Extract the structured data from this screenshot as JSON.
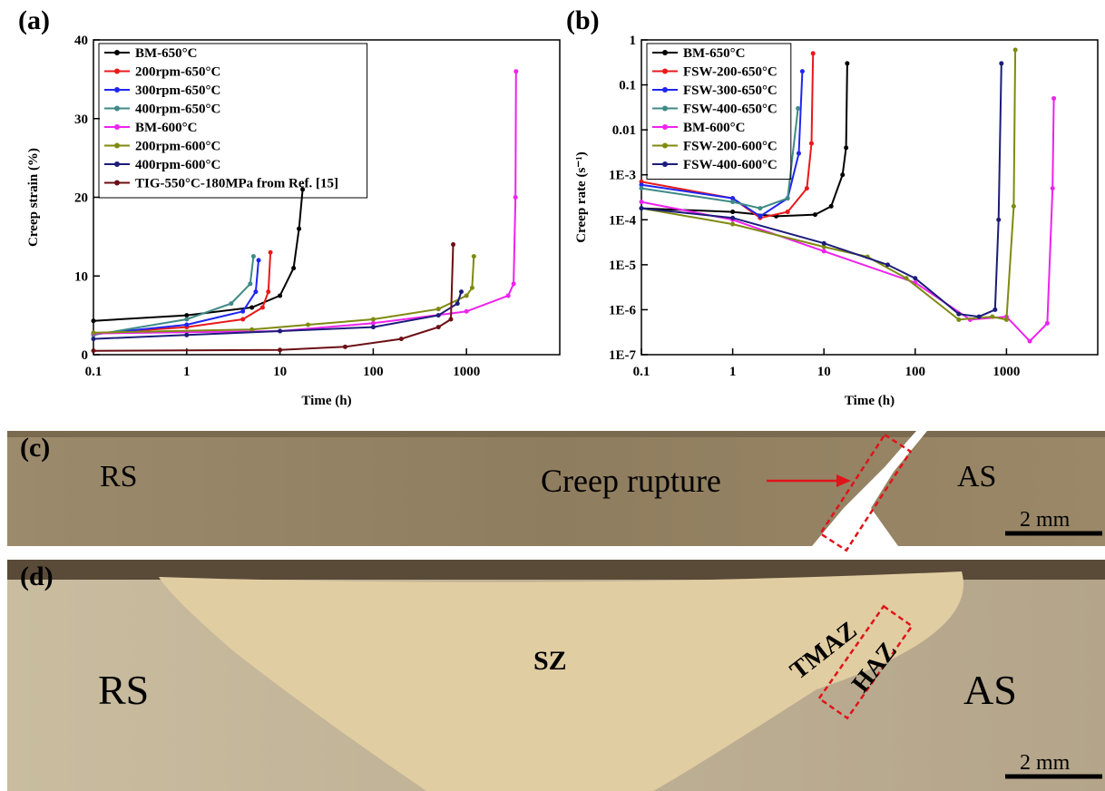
{
  "chart_data": [
    {
      "type": "line",
      "panel_label": "(a)",
      "x_label": "Time (h)",
      "y_label": "Creep strain (%)",
      "xscale": "log",
      "xlim": [
        0.1,
        10000
      ],
      "xticks": [
        0.1,
        1,
        10,
        100,
        1000
      ],
      "ylim": [
        0,
        40
      ],
      "yticks": [
        0,
        10,
        20,
        30,
        40
      ],
      "legend": "upper left",
      "series": [
        {
          "name": "BM-650°C",
          "color": "#000000",
          "x": [
            0.1,
            1,
            5,
            10,
            14,
            16,
            17.5
          ],
          "values": [
            4.3,
            5,
            6,
            7.5,
            11,
            16,
            21
          ]
        },
        {
          "name": "200rpm-650°C",
          "color": "#e8191b",
          "x": [
            0.1,
            1,
            4,
            6.5,
            7.5,
            7.9
          ],
          "values": [
            2.7,
            3.5,
            4.5,
            6,
            8,
            13
          ]
        },
        {
          "name": "300rpm-650°C",
          "color": "#1f26f0",
          "x": [
            0.1,
            1,
            4,
            5.5,
            5.9
          ],
          "values": [
            2.6,
            3.8,
            5.5,
            8,
            12
          ]
        },
        {
          "name": "400rpm-650°C",
          "color": "#3f8a86",
          "x": [
            0.1,
            1,
            3,
            4.8,
            5.2
          ],
          "values": [
            2.5,
            4.5,
            6.5,
            9,
            12.5
          ]
        },
        {
          "name": "BM-600°C",
          "color": "#ee22ee",
          "x": [
            0.1,
            10,
            100,
            1000,
            2800,
            3200,
            3350,
            3400
          ],
          "values": [
            2.7,
            3,
            4,
            5.5,
            7.5,
            9,
            20,
            36
          ]
        },
        {
          "name": "200rpm-600°C",
          "color": "#7f8a10",
          "x": [
            0.1,
            5,
            20,
            100,
            500,
            1000,
            1150,
            1200
          ],
          "values": [
            2.8,
            3.2,
            3.8,
            4.5,
            5.8,
            7.5,
            8.5,
            12.5
          ]
        },
        {
          "name": "400rpm-600°C",
          "color": "#1c1c7a",
          "x": [
            0.1,
            1,
            10,
            100,
            500,
            800,
            880
          ],
          "values": [
            2,
            2.5,
            3,
            3.5,
            5,
            6.5,
            8
          ]
        },
        {
          "name": "TIG-550°C-180MPa from Ref. [15]",
          "color": "#6b0f14",
          "x": [
            0.1,
            10,
            50,
            200,
            500,
            680,
            720
          ],
          "values": [
            0.5,
            0.6,
            1,
            2,
            3.5,
            4.5,
            14
          ]
        }
      ]
    },
    {
      "type": "line",
      "panel_label": "(b)",
      "x_label": "Time (h)",
      "y_label": "Creep rate (s⁻¹)",
      "xscale": "log",
      "xlim": [
        0.1,
        10000
      ],
      "xticks": [
        0.1,
        1,
        10,
        100,
        1000
      ],
      "yscale": "log",
      "ylim": [
        1e-07,
        1
      ],
      "yticks": [
        {
          "value": 1e-07,
          "label": "1E-7"
        },
        {
          "value": 1e-06,
          "label": "1E-6"
        },
        {
          "value": 1e-05,
          "label": "1E-5"
        },
        {
          "value": 0.0001,
          "label": "1E-4"
        },
        {
          "value": 0.001,
          "label": "1E-3"
        },
        0.01,
        0.1,
        1
      ],
      "legend": "upper left",
      "series": [
        {
          "name": "BM-650°C",
          "color": "#000000",
          "x": [
            0.1,
            1,
            3,
            8,
            12,
            16,
            17.5,
            18
          ],
          "values": [
            0.00018,
            0.00015,
            0.00012,
            0.00013,
            0.0002,
            0.001,
            0.004,
            0.3
          ]
        },
        {
          "name": "FSW-200-650°C",
          "color": "#e8191b",
          "x": [
            0.1,
            1,
            2,
            4,
            6.5,
            7.3,
            7.6
          ],
          "values": [
            0.0007,
            0.0003,
            0.00011,
            0.00015,
            0.0005,
            0.005,
            0.5
          ]
        },
        {
          "name": "FSW-300-650°C",
          "color": "#1f26f0",
          "x": [
            0.1,
            1,
            2,
            4,
            5.3,
            5.8
          ],
          "values": [
            0.0006,
            0.0003,
            0.00012,
            0.0003,
            0.003,
            0.2
          ]
        },
        {
          "name": "FSW-400-650°C",
          "color": "#3f8a86",
          "x": [
            0.1,
            1,
            2,
            4,
            5.2
          ],
          "values": [
            0.0005,
            0.00025,
            0.00018,
            0.0003,
            0.03
          ]
        },
        {
          "name": "BM-600°C",
          "color": "#ee22ee",
          "x": [
            0.1,
            1,
            10,
            100,
            400,
            1000,
            1800,
            2800,
            3200,
            3300
          ],
          "values": [
            0.00025,
            0.0001,
            2e-05,
            4e-06,
            6e-07,
            7e-07,
            2e-07,
            5e-07,
            0.0005,
            0.05
          ]
        },
        {
          "name": "FSW-200-600°C",
          "color": "#7f8a10",
          "x": [
            0.1,
            1,
            10,
            30,
            80,
            300,
            700,
            1000,
            1200,
            1250
          ],
          "values": [
            0.00018,
            8e-05,
            2.5e-05,
            1.5e-05,
            5e-06,
            6e-07,
            7e-07,
            6e-07,
            0.0002,
            0.6
          ]
        },
        {
          "name": "FSW-400-600°C",
          "color": "#1c1c7a",
          "x": [
            0.1,
            1,
            10,
            50,
            100,
            300,
            500,
            750,
            820,
            880
          ],
          "values": [
            0.00018,
            0.00011,
            3e-05,
            1e-05,
            5e-06,
            8e-07,
            7e-07,
            1e-06,
            0.0001,
            0.3
          ]
        }
      ]
    }
  ],
  "micrographs": [
    {
      "label": "(c)",
      "texts": [
        "RS",
        "Creep rupture",
        "AS",
        "2 mm"
      ]
    },
    {
      "label": "(d)",
      "texts": [
        "RS",
        "SZ",
        "TMAZ",
        "HAZ",
        "AS",
        "2 mm"
      ]
    }
  ]
}
